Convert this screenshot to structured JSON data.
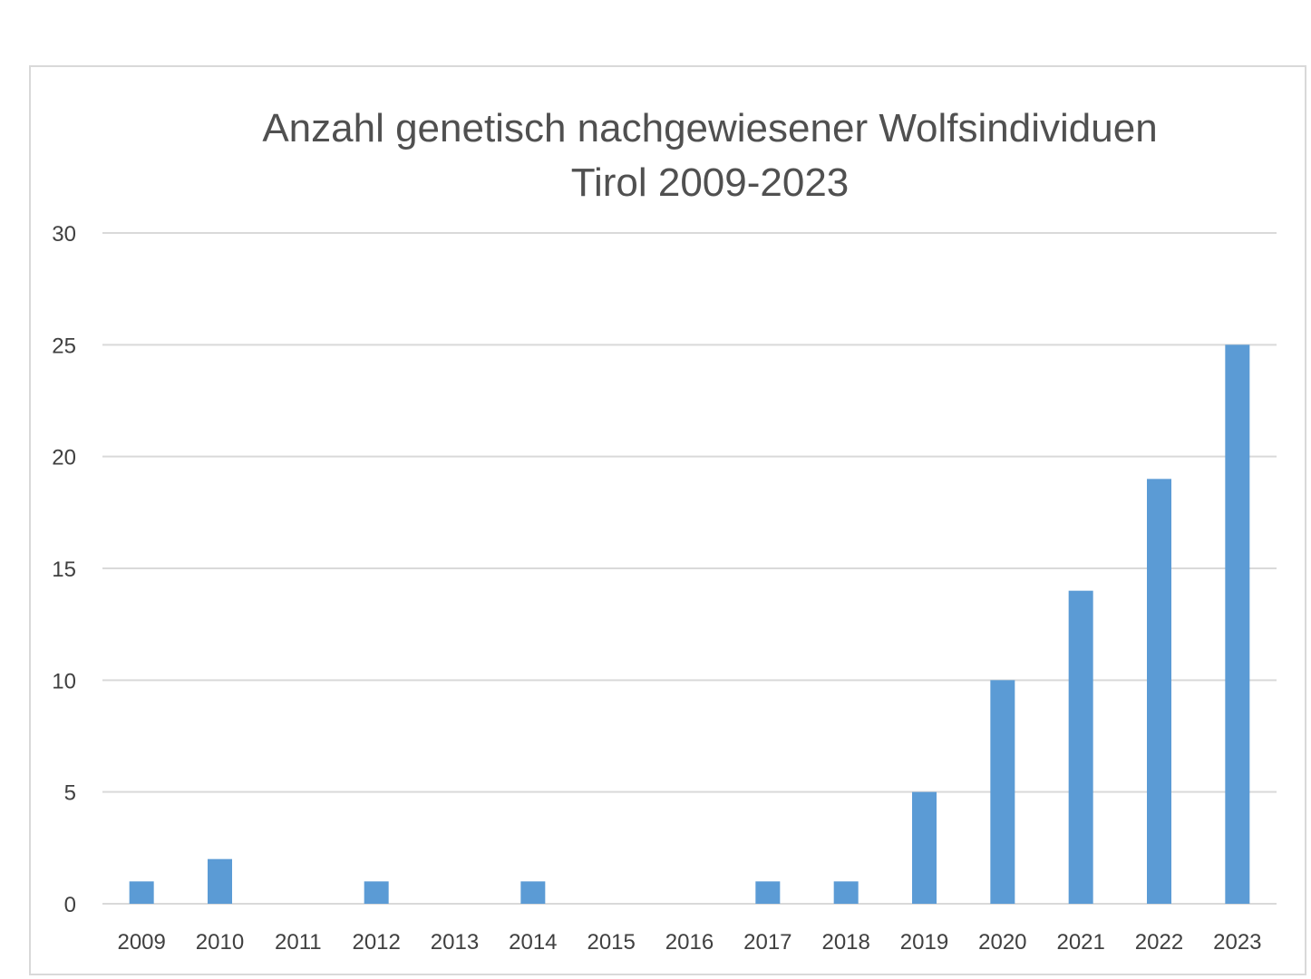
{
  "chart_data": {
    "type": "bar",
    "title": "Anzahl genetisch nachgewiesener Wolfsindividuen",
    "subtitle": "Tirol 2009-2023",
    "xlabel": "",
    "ylabel": "",
    "categories": [
      "2009",
      "2010",
      "2011",
      "2012",
      "2013",
      "2014",
      "2015",
      "2016",
      "2017",
      "2018",
      "2019",
      "2020",
      "2021",
      "2022",
      "2023"
    ],
    "values": [
      1,
      2,
      0,
      1,
      0,
      1,
      0,
      0,
      1,
      1,
      5,
      10,
      14,
      19,
      25
    ],
    "ylim": [
      0,
      30
    ],
    "yticks": [
      0,
      5,
      10,
      15,
      20,
      25,
      30
    ],
    "grid": true,
    "legend": "none",
    "colors": {
      "bar": "#5b9bd5",
      "grid": "#d9d9d9",
      "text": "#404040"
    }
  }
}
